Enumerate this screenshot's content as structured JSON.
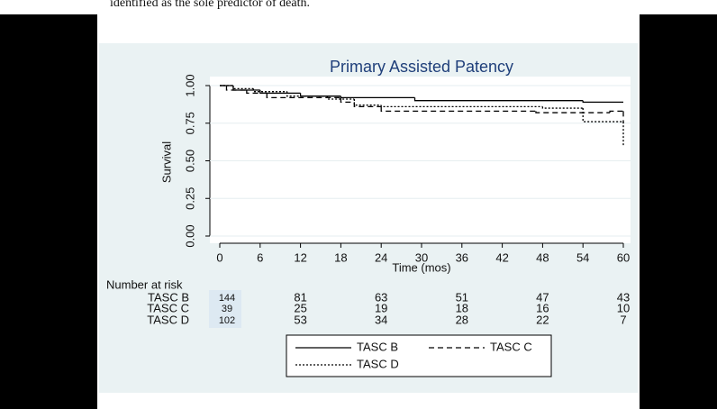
{
  "document": {
    "text": "identified as the sole predictor of death."
  },
  "chart_data": {
    "type": "step",
    "title": "Primary Assisted Patency",
    "x_label": "Time (mos)",
    "y_label": "Survival",
    "xlim": [
      0,
      60
    ],
    "ylim": [
      0,
      1
    ],
    "xticks": [
      0,
      6,
      12,
      18,
      24,
      30,
      36,
      42,
      48,
      54,
      60
    ],
    "yticks": [
      {
        "value": 0,
        "label": "0.00"
      },
      {
        "value": 0.25,
        "label": "0.25"
      },
      {
        "value": 0.5,
        "label": "0.50"
      },
      {
        "value": 0.75,
        "label": "0.75"
      },
      {
        "value": 1,
        "label": "1.00"
      }
    ],
    "grid": true,
    "series": [
      {
        "name": "TASC B",
        "color": "#000000",
        "style": "solid",
        "x": [
          0,
          2,
          6,
          12,
          18,
          29,
          54,
          60
        ],
        "values": [
          1.0,
          0.97,
          0.95,
          0.93,
          0.92,
          0.9,
          0.89,
          0.89
        ]
      },
      {
        "name": "TASC C",
        "color": "#000000",
        "style": "dashed",
        "x": [
          0,
          1,
          4,
          7,
          18,
          20,
          24,
          47,
          58,
          60
        ],
        "values": [
          1.0,
          0.97,
          0.95,
          0.92,
          0.89,
          0.86,
          0.83,
          0.82,
          0.83,
          0.75
        ]
      },
      {
        "name": "TASC D",
        "color": "#000000",
        "style": "dotted",
        "x": [
          0,
          2,
          5,
          10,
          16,
          20,
          24,
          48,
          54,
          60
        ],
        "values": [
          1.0,
          0.98,
          0.96,
          0.93,
          0.91,
          0.87,
          0.86,
          0.85,
          0.76,
          0.6
        ]
      }
    ],
    "risk_table": {
      "title": "Number at risk",
      "rows": [
        [
          144,
          81,
          63,
          51,
          47,
          43
        ],
        [
          39,
          25,
          19,
          18,
          16,
          10
        ],
        [
          102,
          53,
          34,
          28,
          22,
          7
        ]
      ]
    }
  }
}
